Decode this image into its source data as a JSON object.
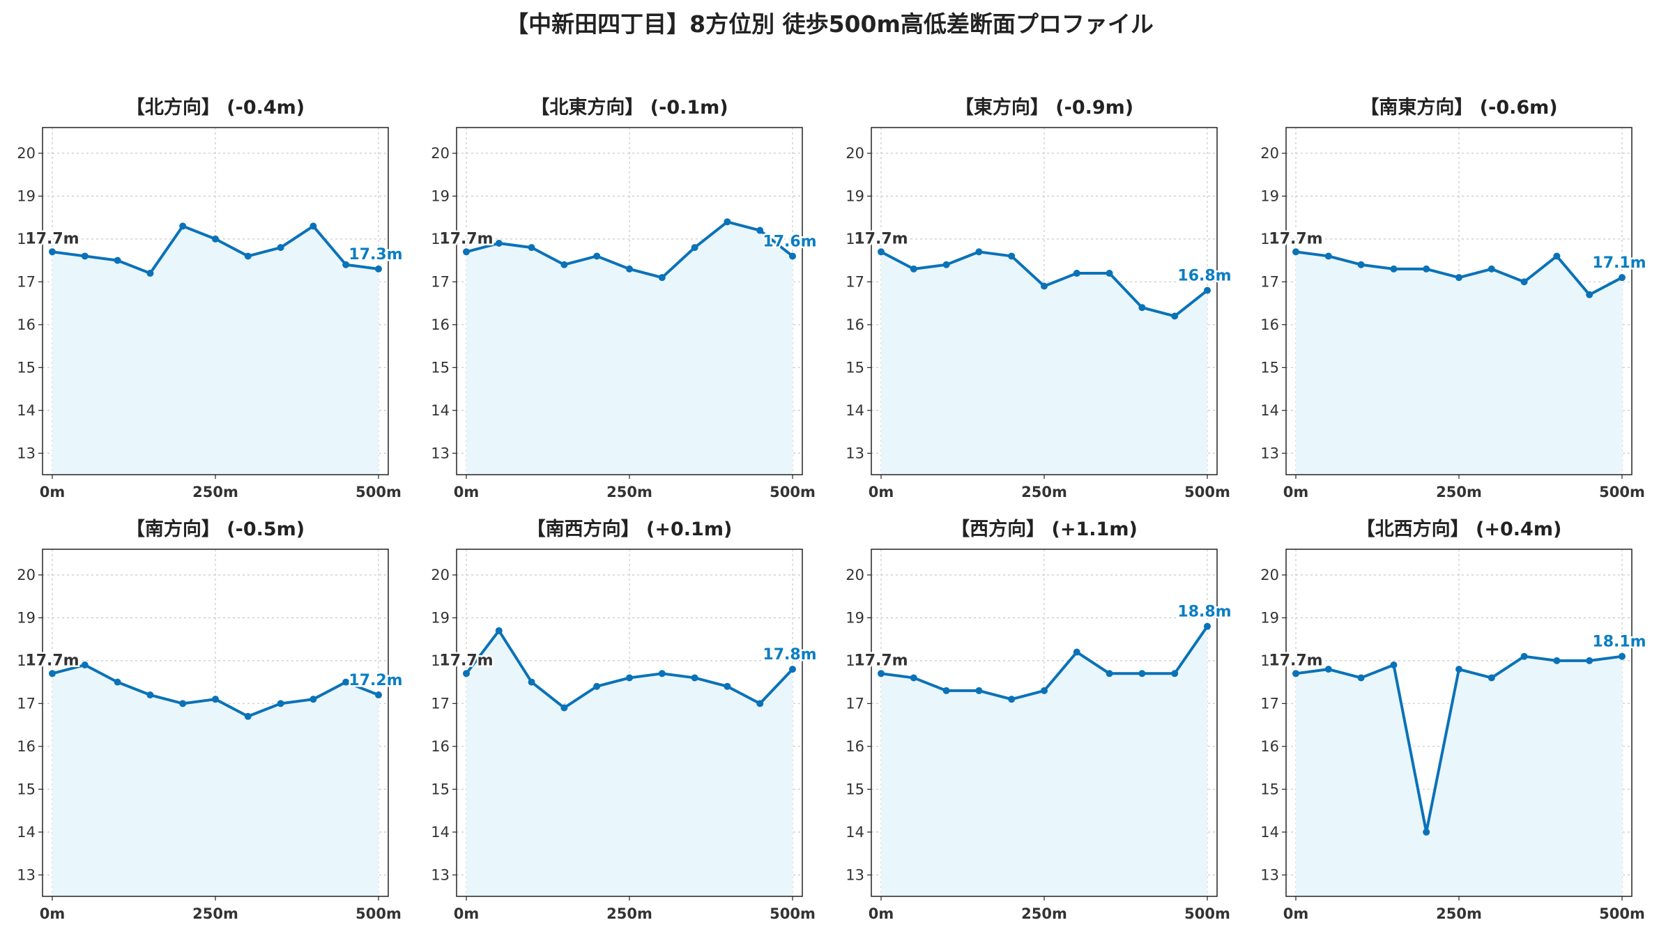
{
  "title": "【中新田四丁目】8方位別 徒歩500m高低差断面プロファイル",
  "colors": {
    "line": "#0a72b8",
    "fill": "#e9f6fb",
    "end_label": "#0a7ec2",
    "start_label": "#333333",
    "grid": "#c8c8c8"
  },
  "chart_data": [
    {
      "type": "line",
      "title": "【北方向】 (-0.4m)",
      "x": [
        0,
        50,
        100,
        150,
        200,
        250,
        300,
        350,
        400,
        450,
        500
      ],
      "values": [
        17.7,
        17.6,
        17.5,
        17.2,
        18.3,
        18.0,
        17.6,
        17.8,
        18.3,
        17.4,
        17.3
      ],
      "xticks": [
        "0m",
        "250m",
        "500m"
      ],
      "yticks": [
        13,
        14,
        15,
        16,
        17,
        18,
        19,
        20
      ],
      "ylim": [
        12.5,
        20.6
      ],
      "start_label": "17.7m",
      "end_label": "17.3m",
      "grid": true
    },
    {
      "type": "line",
      "title": "【北東方向】 (-0.1m)",
      "x": [
        0,
        50,
        100,
        150,
        200,
        250,
        300,
        350,
        400,
        450,
        500
      ],
      "values": [
        17.7,
        17.9,
        17.8,
        17.4,
        17.6,
        17.3,
        17.1,
        17.8,
        18.4,
        18.2,
        17.6
      ],
      "xticks": [
        "0m",
        "250m",
        "500m"
      ],
      "yticks": [
        13,
        14,
        15,
        16,
        17,
        18,
        19,
        20
      ],
      "ylim": [
        12.5,
        20.6
      ],
      "start_label": "17.7m",
      "end_label": "17.6m",
      "grid": true
    },
    {
      "type": "line",
      "title": "【東方向】 (-0.9m)",
      "x": [
        0,
        50,
        100,
        150,
        200,
        250,
        300,
        350,
        400,
        450,
        500
      ],
      "values": [
        17.7,
        17.3,
        17.4,
        17.7,
        17.6,
        16.9,
        17.2,
        17.2,
        16.4,
        16.2,
        16.8
      ],
      "xticks": [
        "0m",
        "250m",
        "500m"
      ],
      "yticks": [
        13,
        14,
        15,
        16,
        17,
        18,
        19,
        20
      ],
      "ylim": [
        12.5,
        20.6
      ],
      "start_label": "17.7m",
      "end_label": "16.8m",
      "grid": true
    },
    {
      "type": "line",
      "title": "【南東方向】 (-0.6m)",
      "x": [
        0,
        50,
        100,
        150,
        200,
        250,
        300,
        350,
        400,
        450,
        500
      ],
      "values": [
        17.7,
        17.6,
        17.4,
        17.3,
        17.3,
        17.1,
        17.3,
        17.0,
        17.6,
        16.7,
        17.1
      ],
      "xticks": [
        "0m",
        "250m",
        "500m"
      ],
      "yticks": [
        13,
        14,
        15,
        16,
        17,
        18,
        19,
        20
      ],
      "ylim": [
        12.5,
        20.6
      ],
      "start_label": "17.7m",
      "end_label": "17.1m",
      "grid": true
    },
    {
      "type": "line",
      "title": "【南方向】 (-0.5m)",
      "x": [
        0,
        50,
        100,
        150,
        200,
        250,
        300,
        350,
        400,
        450,
        500
      ],
      "values": [
        17.7,
        17.9,
        17.5,
        17.2,
        17.0,
        17.1,
        16.7,
        17.0,
        17.1,
        17.5,
        17.2
      ],
      "xticks": [
        "0m",
        "250m",
        "500m"
      ],
      "yticks": [
        13,
        14,
        15,
        16,
        17,
        18,
        19,
        20
      ],
      "ylim": [
        12.5,
        20.6
      ],
      "start_label": "17.7m",
      "end_label": "17.2m",
      "grid": true
    },
    {
      "type": "line",
      "title": "【南西方向】 (+0.1m)",
      "x": [
        0,
        50,
        100,
        150,
        200,
        250,
        300,
        350,
        400,
        450,
        500
      ],
      "values": [
        17.7,
        18.7,
        17.5,
        16.9,
        17.4,
        17.6,
        17.7,
        17.6,
        17.4,
        17.0,
        17.8
      ],
      "xticks": [
        "0m",
        "250m",
        "500m"
      ],
      "yticks": [
        13,
        14,
        15,
        16,
        17,
        18,
        19,
        20
      ],
      "ylim": [
        12.5,
        20.6
      ],
      "start_label": "17.7m",
      "end_label": "17.8m",
      "grid": true
    },
    {
      "type": "line",
      "title": "【西方向】 (+1.1m)",
      "x": [
        0,
        50,
        100,
        150,
        200,
        250,
        300,
        350,
        400,
        450,
        500
      ],
      "values": [
        17.7,
        17.6,
        17.3,
        17.3,
        17.1,
        17.3,
        18.2,
        17.7,
        17.7,
        17.7,
        18.8
      ],
      "xticks": [
        "0m",
        "250m",
        "500m"
      ],
      "yticks": [
        13,
        14,
        15,
        16,
        17,
        18,
        19,
        20
      ],
      "ylim": [
        12.5,
        20.6
      ],
      "start_label": "17.7m",
      "end_label": "18.8m",
      "grid": true
    },
    {
      "type": "line",
      "title": "【北西方向】 (+0.4m)",
      "x": [
        0,
        50,
        100,
        150,
        200,
        250,
        300,
        350,
        400,
        450,
        500
      ],
      "values": [
        17.7,
        17.8,
        17.6,
        17.9,
        14.0,
        17.8,
        17.6,
        18.1,
        18.0,
        18.0,
        18.1
      ],
      "xticks": [
        "0m",
        "250m",
        "500m"
      ],
      "yticks": [
        13,
        14,
        15,
        16,
        17,
        18,
        19,
        20
      ],
      "ylim": [
        12.5,
        20.6
      ],
      "start_label": "17.7m",
      "end_label": "18.1m",
      "grid": true
    }
  ]
}
